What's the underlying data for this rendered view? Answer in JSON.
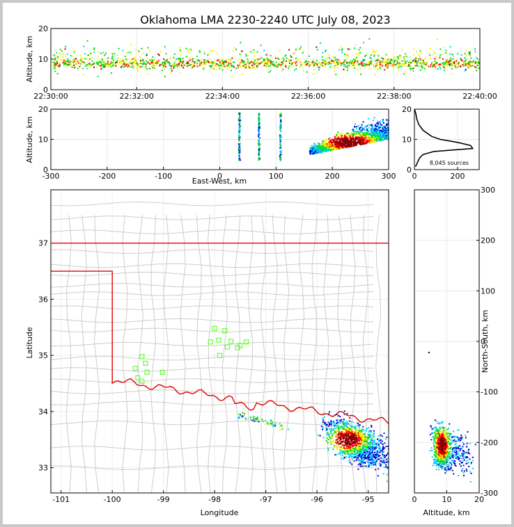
{
  "chart_data": [
    {
      "type": "scatter",
      "panel": "altitude-time",
      "title": "Oklahoma LMA 2230-2240 UTC July 08, 2023",
      "ylabel": "Altitude, km",
      "xlabel": "",
      "xticks": [
        "22:30:00",
        "22:32:00",
        "22:34:00",
        "22:36:00",
        "22:38:00",
        "22:40:00"
      ],
      "yticks": [
        "0",
        "10",
        "20"
      ],
      "ylim": [
        0,
        20
      ],
      "bands": [
        {
          "altitude_range": [
            6,
            10
          ],
          "density": "dense"
        },
        {
          "altitude_range": [
            3,
            18
          ],
          "density": "sparse"
        }
      ]
    },
    {
      "type": "scatter",
      "panel": "altitude-east-west",
      "xlabel": "East-West, km",
      "ylabel": "Altitude, km",
      "xticks": [
        "-300",
        "-200",
        "-100",
        "0",
        "100",
        "200",
        "300"
      ],
      "yticks": [
        "0",
        "10",
        "20"
      ],
      "xlim": [
        -300,
        300
      ],
      "ylim": [
        0,
        20
      ],
      "features": [
        {
          "name": "column",
          "x": 35,
          "altitude_range": [
            3,
            19
          ]
        },
        {
          "name": "column",
          "x": 70,
          "altitude_range": [
            3,
            19
          ]
        },
        {
          "name": "column",
          "x": 108,
          "altitude_range": [
            3,
            19
          ]
        },
        {
          "name": "storm-cluster",
          "x_range": [
            160,
            300
          ],
          "altitude_range": [
            4,
            20
          ],
          "core": [
            230,
            9
          ]
        }
      ]
    },
    {
      "type": "line",
      "panel": "altitude-histogram",
      "annotation": "8,045 sources",
      "xticks": [
        "0",
        "200"
      ],
      "yticks": [
        "0",
        "10",
        "20"
      ],
      "xlim": [
        0,
        300
      ],
      "ylim": [
        0,
        20
      ],
      "points": [
        [
          5,
          1
        ],
        [
          12,
          2
        ],
        [
          18,
          3
        ],
        [
          25,
          4
        ],
        [
          40,
          5
        ],
        [
          90,
          6
        ],
        [
          180,
          6.5
        ],
        [
          270,
          7
        ],
        [
          260,
          8
        ],
        [
          200,
          9
        ],
        [
          120,
          10
        ],
        [
          80,
          11
        ],
        [
          60,
          12
        ],
        [
          40,
          13
        ],
        [
          30,
          14
        ],
        [
          20,
          15
        ],
        [
          15,
          16
        ],
        [
          10,
          17
        ],
        [
          8,
          18
        ],
        [
          5,
          19
        ],
        [
          0,
          20
        ]
      ]
    },
    {
      "type": "scatter",
      "panel": "plan-view",
      "xlabel": "Longitude",
      "ylabel": "Latitude",
      "xticks": [
        "-101",
        "-100",
        "-99",
        "-98",
        "-97",
        "-96",
        "-95"
      ],
      "yticks": [
        "33",
        "34",
        "35",
        "36",
        "37"
      ],
      "xlim": [
        -101.2,
        -94.6
      ],
      "ylim": [
        32.55,
        37.95
      ],
      "stations": [
        [
          -98.0,
          35.48
        ],
        [
          -97.8,
          35.44
        ],
        [
          -98.08,
          35.24
        ],
        [
          -97.92,
          35.27
        ],
        [
          -97.68,
          35.25
        ],
        [
          -97.5,
          35.18
        ],
        [
          -97.38,
          35.24
        ],
        [
          -97.75,
          35.15
        ],
        [
          -97.55,
          35.14
        ],
        [
          -97.9,
          35.0
        ],
        [
          -99.42,
          34.98
        ],
        [
          -99.35,
          34.86
        ],
        [
          -99.55,
          34.77
        ],
        [
          -99.32,
          34.7
        ],
        [
          -99.02,
          34.7
        ],
        [
          -99.5,
          34.6
        ],
        [
          -99.42,
          34.54
        ]
      ],
      "storm_core": [
        -95.4,
        33.5
      ]
    },
    {
      "type": "scatter",
      "panel": "north-south-altitude",
      "xlabel": "Altitude, km",
      "ylabel": "North-South, km",
      "xticks": [
        "0",
        "10",
        "20"
      ],
      "yticks": [
        "-300",
        "-200",
        "-100",
        "0",
        "100",
        "200",
        "300"
      ],
      "xlim": [
        0,
        20
      ],
      "ylim": [
        -300,
        300
      ]
    }
  ],
  "colors": {
    "low_density": "#0000cc",
    "mid_density": "#00ccff",
    "green": "#00dd00",
    "yellow": "#ffee00",
    "high_density": "#ff0000",
    "core": "#8b0000",
    "state_border": "#e00000",
    "county_lines": "#cccccc",
    "stations": "#66ff33"
  }
}
